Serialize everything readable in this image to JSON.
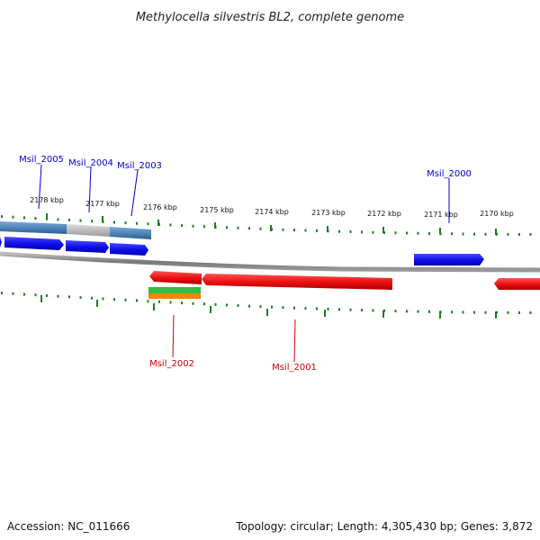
{
  "title": "Methylocella silvestris BL2, complete genome",
  "ruler": {
    "tick_color": "#1e7d1e",
    "labels": [
      "2178 kbp",
      "2177 kbp",
      "2176 kbp",
      "2175 kbp",
      "2174 kbp",
      "2173 kbp",
      "2172 kbp",
      "2171 kbp",
      "2170 kbp"
    ]
  },
  "genes_forward": [
    {
      "label": "Msil_2005",
      "color": "#0000cc"
    },
    {
      "label": "Msil_2004",
      "color": "#0000cc"
    },
    {
      "label": "Msil_2003",
      "color": "#0000cc"
    },
    {
      "label": "Msil_2000",
      "color": "#0000cc"
    }
  ],
  "genes_reverse": [
    {
      "label": "Msil_2002",
      "color": "#cc0000"
    },
    {
      "label": "Msil_2001",
      "color": "#cc0000"
    }
  ],
  "colors": {
    "forward_cds": "#1a1aee",
    "reverse_cds": "#ee1111",
    "steelblue_feature": "#4f86b8",
    "gray_feature": "#bbbbbb",
    "backbone": "#888888",
    "green_feature": "#33bb44",
    "orange_feature": "#ee8800"
  },
  "footer": {
    "accession": "Accession: NC_011666",
    "topology": "Topology: circular; Length: 4,305,430 bp; Genes: 3,872"
  }
}
